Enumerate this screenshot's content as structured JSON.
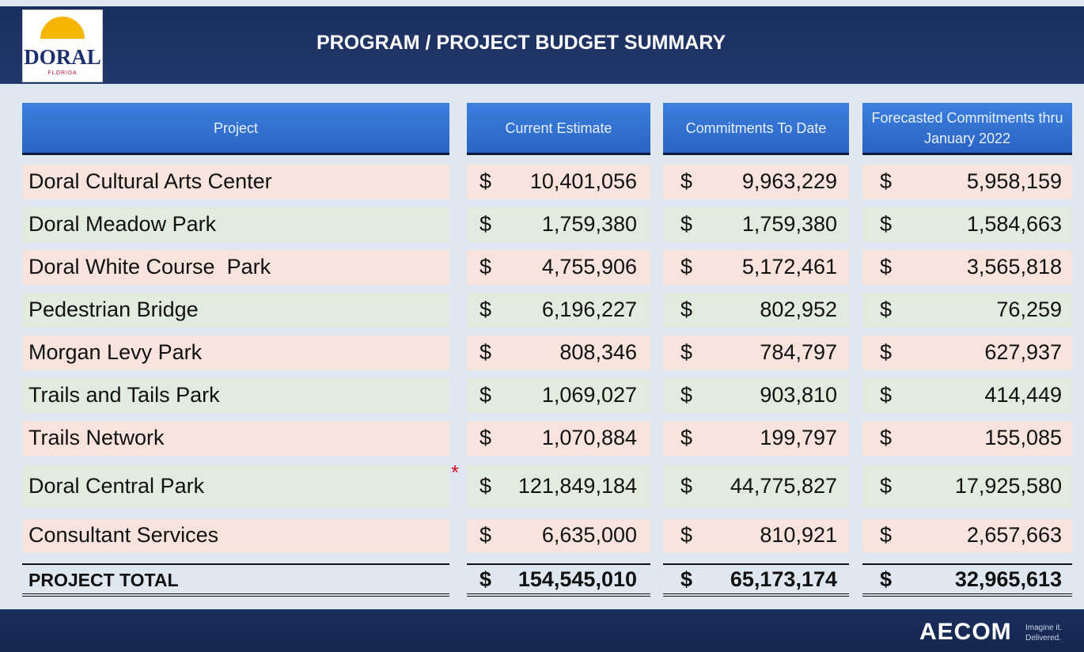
{
  "logo": {
    "text": "DORAL",
    "subtext": "FLORIDA"
  },
  "header": {
    "title": "PROGRAM / PROJECT BUDGET SUMMARY"
  },
  "table": {
    "columns": [
      "Project",
      "Current Estimate",
      "Commitments  To Date",
      "Forecasted  Commitments thru January 2022"
    ],
    "rows": [
      {
        "cells": [
          "Doral Cultural Arts Center",
          "$",
          "10,401,056",
          "$",
          "9,963,229",
          "$",
          "5,958,159"
        ]
      },
      {
        "cells": [
          "Doral Meadow Park",
          "$",
          "1,759,380",
          "$",
          "1,759,380",
          "$",
          "1,584,663"
        ]
      },
      {
        "cells": [
          "Doral White Course  Park",
          "$",
          "4,755,906",
          "$",
          "5,172,461",
          "$",
          "3,565,818"
        ]
      },
      {
        "cells": [
          "Pedestrian Bridge",
          "$",
          "6,196,227",
          "$",
          "802,952",
          "$",
          "76,259"
        ]
      },
      {
        "cells": [
          "Morgan Levy Park",
          "$",
          "808,346",
          "$",
          "784,797",
          "$",
          "627,937"
        ]
      },
      {
        "cells": [
          "Trails and Tails Park",
          "$",
          "1,069,027",
          "$",
          "903,810",
          "$",
          "414,449"
        ]
      },
      {
        "cells": [
          "Trails Network",
          "$",
          "1,070,884",
          "$",
          "199,797",
          "$",
          "155,085"
        ]
      },
      {
        "cells": [
          "Doral Central Park",
          "$",
          "121,849,184",
          "$",
          "44,775,827",
          "$",
          "17,925,580"
        ],
        "marker": "*"
      },
      {
        "cells": [
          "Consultant Services",
          "$",
          "6,635,000",
          "$",
          "810,921",
          "$",
          "2,657,663"
        ]
      }
    ],
    "total": {
      "cells": [
        "PROJECT TOTAL",
        "$",
        "154,545,010",
        "$",
        "65,173,174",
        "$",
        "32,965,613"
      ]
    }
  },
  "footer": {
    "brand": "AECOM",
    "tagline": [
      "Imagine it.",
      "Delivered."
    ]
  }
}
